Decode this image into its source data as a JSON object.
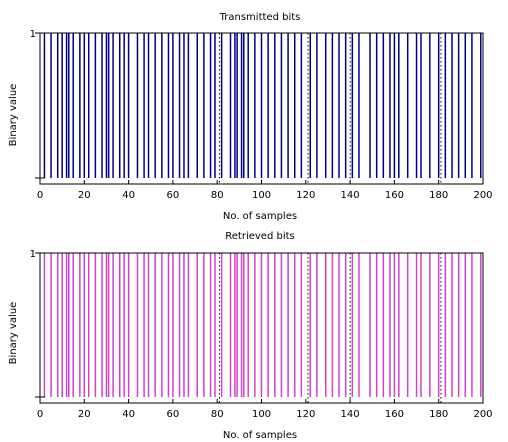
{
  "chart_data": [
    {
      "type": "bar",
      "title": "Transmitted bits",
      "xlabel": "No. of samples",
      "ylabel": "Binary value",
      "xlim": [
        0,
        200
      ],
      "ylim": [
        0,
        1
      ],
      "xticks": [
        "0",
        "20",
        "40",
        "60",
        "80",
        "100",
        "120",
        "140",
        "160",
        "180",
        "200"
      ],
      "yticks": [
        "1"
      ],
      "grid": false,
      "color": "#000080",
      "x": [
        2,
        5,
        8,
        10,
        12,
        13,
        15,
        18,
        20,
        22,
        25,
        28,
        30,
        31,
        33,
        36,
        38,
        40,
        44,
        47,
        49,
        52,
        55,
        58,
        60,
        63,
        65,
        67,
        71,
        74,
        77,
        79,
        82,
        86,
        88,
        89,
        91,
        92,
        94,
        97,
        100,
        103,
        106,
        109,
        112,
        115,
        118,
        122,
        125,
        129,
        132,
        135,
        138,
        141,
        144,
        149,
        152,
        155,
        158,
        160,
        162,
        166,
        170,
        172,
        176,
        180,
        183,
        186,
        189,
        192,
        195,
        199
      ],
      "values": [
        1,
        1,
        1,
        1,
        1,
        1,
        1,
        1,
        1,
        1,
        1,
        1,
        1,
        1,
        1,
        1,
        1,
        1,
        1,
        1,
        1,
        1,
        1,
        1,
        1,
        1,
        1,
        1,
        1,
        1,
        1,
        1,
        1,
        1,
        1,
        1,
        1,
        1,
        1,
        1,
        1,
        1,
        1,
        1,
        1,
        1,
        1,
        1,
        1,
        1,
        1,
        1,
        1,
        1,
        1,
        1,
        1,
        1,
        1,
        1,
        1,
        1,
        1,
        1,
        1,
        1,
        1,
        1,
        1,
        1,
        1,
        1
      ],
      "markers_dotted": [
        81,
        121,
        140,
        181
      ]
    },
    {
      "type": "bar",
      "title": "Retrieved bits",
      "xlabel": "No. of samples",
      "ylabel": "Binary value",
      "xlim": [
        0,
        200
      ],
      "ylim": [
        0,
        1
      ],
      "xticks": [
        "0",
        "20",
        "40",
        "60",
        "80",
        "100",
        "120",
        "140",
        "160",
        "180",
        "200"
      ],
      "yticks": [
        "1"
      ],
      "grid": false,
      "color": "#cc44cc",
      "x": [
        2,
        5,
        8,
        10,
        12,
        13,
        15,
        18,
        20,
        22,
        25,
        28,
        30,
        31,
        33,
        36,
        38,
        40,
        44,
        47,
        49,
        52,
        55,
        58,
        60,
        63,
        65,
        67,
        71,
        74,
        77,
        79,
        82,
        86,
        88,
        89,
        91,
        92,
        94,
        97,
        100,
        103,
        106,
        109,
        112,
        115,
        118,
        122,
        125,
        129,
        132,
        135,
        138,
        141,
        144,
        149,
        152,
        155,
        158,
        160,
        162,
        166,
        170,
        172,
        176,
        180,
        183,
        186,
        189,
        192,
        195,
        199
      ],
      "values": [
        1,
        1,
        1,
        1,
        1,
        1,
        1,
        1,
        1,
        1,
        1,
        1,
        1,
        1,
        1,
        1,
        1,
        1,
        1,
        1,
        1,
        1,
        1,
        1,
        1,
        1,
        1,
        1,
        1,
        1,
        1,
        1,
        1,
        1,
        1,
        1,
        1,
        1,
        1,
        1,
        1,
        1,
        1,
        1,
        1,
        1,
        1,
        1,
        1,
        1,
        1,
        1,
        1,
        1,
        1,
        1,
        1,
        1,
        1,
        1,
        1,
        1,
        1,
        1,
        1,
        1,
        1,
        1,
        1,
        1,
        1,
        1
      ],
      "markers_dotted": [
        81,
        121,
        140,
        181
      ]
    }
  ]
}
